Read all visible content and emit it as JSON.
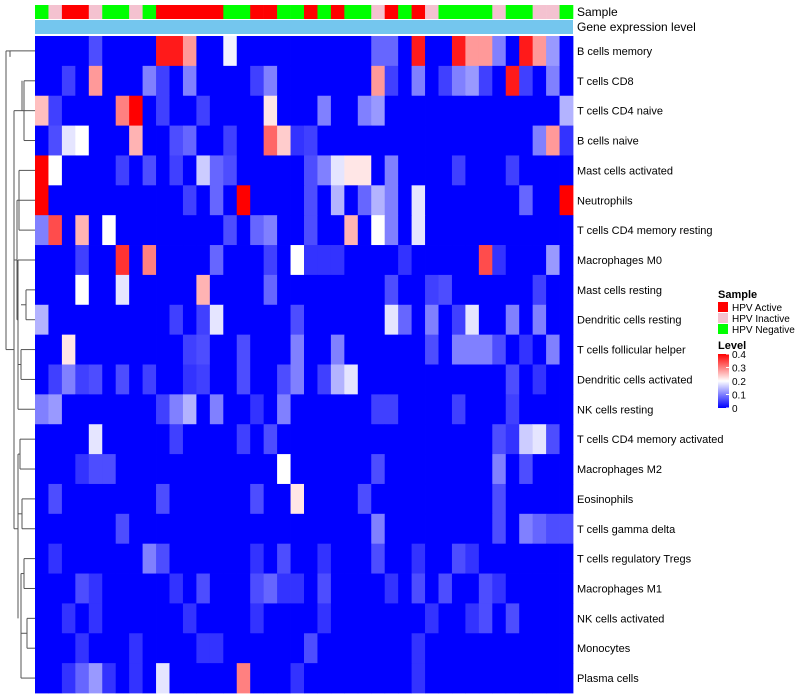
{
  "chart_data": {
    "type": "heatmap",
    "annotation_labels": [
      "Sample",
      "Gene expression level"
    ],
    "rows": [
      "B cells memory",
      "T cells CD8",
      "T cells CD4 naive",
      "B cells naive",
      "Mast cells activated",
      "Neutrophils",
      "T cells CD4 memory resting",
      "Macrophages M0",
      "Mast cells resting",
      "Dendritic cells resting",
      "T cells follicular helper",
      "Dendritic cells activated",
      "NK cells resting",
      "T cells CD4 memory activated",
      "Macrophages M2",
      "Eosinophils",
      "T cells gamma delta",
      "T cells regulatory  Tregs",
      "Macrophages M1",
      "NK cells activated",
      "Monocytes",
      "Plasma cells"
    ],
    "sample_groups": [
      "Negative",
      "Inactive",
      "Active",
      "Active",
      "Inactive",
      "Negative",
      "Negative",
      "Inactive",
      "Negative",
      "Active",
      "Active",
      "Active",
      "Active",
      "Active",
      "Negative",
      "Negative",
      "Active",
      "Active",
      "Negative",
      "Negative",
      "Active",
      "Negative",
      "Active",
      "Negative",
      "Negative",
      "Inactive",
      "Active",
      "Negative",
      "Active",
      "Inactive",
      "Negative",
      "Negative",
      "Negative",
      "Negative",
      "Inactive",
      "Negative",
      "Negative",
      "Inactive",
      "Inactive",
      "Negative"
    ],
    "values": [
      [
        0.0,
        0.0,
        0.0,
        0.0,
        0.06,
        0.0,
        0.0,
        0.0,
        0.0,
        0.38,
        0.38,
        0.28,
        0.0,
        0.0,
        0.19,
        0.0,
        0.0,
        0.0,
        0.0,
        0.0,
        0.0,
        0.0,
        0.0,
        0.0,
        0.0,
        0.08,
        0.08,
        0.0,
        0.38,
        0.0,
        0.0,
        0.38,
        0.28,
        0.28,
        0.1,
        0.0,
        0.38,
        0.28,
        0.12,
        0.0
      ],
      [
        0.0,
        0.0,
        0.05,
        0.0,
        0.28,
        0.0,
        0.0,
        0.0,
        0.1,
        0.05,
        0.0,
        0.1,
        0.0,
        0.0,
        0.0,
        0.0,
        0.05,
        0.1,
        0.0,
        0.0,
        0.0,
        0.0,
        0.0,
        0.0,
        0.0,
        0.28,
        0.05,
        0.0,
        0.1,
        0.0,
        0.05,
        0.1,
        0.12,
        0.05,
        0.0,
        0.38,
        0.05,
        0.0,
        0.1,
        0.0
      ],
      [
        0.25,
        0.05,
        0.0,
        0.0,
        0.0,
        0.0,
        0.3,
        0.4,
        0.0,
        0.05,
        0.0,
        0.0,
        0.05,
        0.0,
        0.0,
        0.0,
        0.0,
        0.22,
        0.0,
        0.0,
        0.0,
        0.1,
        0.0,
        0.0,
        0.1,
        0.12,
        0.0,
        0.0,
        0.0,
        0.0,
        0.0,
        0.0,
        0.0,
        0.0,
        0.0,
        0.0,
        0.0,
        0.0,
        0.0,
        0.14
      ],
      [
        0.0,
        0.06,
        0.18,
        0.2,
        0.0,
        0.0,
        0.0,
        0.26,
        0.0,
        0.0,
        0.06,
        0.08,
        0.0,
        0.0,
        0.05,
        0.0,
        0.0,
        0.32,
        0.24,
        0.04,
        0.05,
        0.0,
        0.0,
        0.0,
        0.0,
        0.0,
        0.0,
        0.0,
        0.0,
        0.0,
        0.0,
        0.0,
        0.0,
        0.0,
        0.0,
        0.0,
        0.0,
        0.1,
        0.28,
        0.04
      ],
      [
        0.4,
        0.2,
        0.0,
        0.0,
        0.0,
        0.0,
        0.05,
        0.0,
        0.06,
        0.0,
        0.05,
        0.0,
        0.16,
        0.08,
        0.06,
        0.0,
        0.0,
        0.0,
        0.0,
        0.0,
        0.06,
        0.1,
        0.18,
        0.22,
        0.22,
        0.0,
        0.1,
        0.0,
        0.0,
        0.0,
        0.0,
        0.05,
        0.0,
        0.0,
        0.0,
        0.05,
        0.0,
        0.0,
        0.0,
        0.0
      ],
      [
        0.4,
        0.0,
        0.0,
        0.0,
        0.0,
        0.0,
        0.0,
        0.0,
        0.0,
        0.0,
        0.0,
        0.05,
        0.0,
        0.08,
        0.0,
        0.4,
        0.0,
        0.0,
        0.0,
        0.0,
        0.06,
        0.0,
        0.14,
        0.0,
        0.08,
        0.14,
        0.1,
        0.0,
        0.18,
        0.0,
        0.0,
        0.0,
        0.0,
        0.0,
        0.0,
        0.0,
        0.08,
        0.0,
        0.0,
        0.4
      ],
      [
        0.1,
        0.34,
        0.0,
        0.26,
        0.0,
        0.2,
        0.0,
        0.0,
        0.0,
        0.0,
        0.0,
        0.0,
        0.0,
        0.0,
        0.06,
        0.0,
        0.08,
        0.1,
        0.0,
        0.0,
        0.06,
        0.0,
        0.0,
        0.26,
        0.0,
        0.2,
        0.1,
        0.0,
        0.18,
        0.0,
        0.0,
        0.0,
        0.0,
        0.0,
        0.0,
        0.0,
        0.0,
        0.0,
        0.0,
        0.0
      ],
      [
        0.0,
        0.0,
        0.0,
        0.05,
        0.0,
        0.0,
        0.36,
        0.0,
        0.3,
        0.0,
        0.0,
        0.0,
        0.0,
        0.08,
        0.0,
        0.0,
        0.0,
        0.05,
        0.0,
        0.2,
        0.04,
        0.04,
        0.04,
        0.0,
        0.0,
        0.0,
        0.0,
        0.04,
        0.0,
        0.0,
        0.0,
        0.0,
        0.0,
        0.34,
        0.04,
        0.0,
        0.0,
        0.0,
        0.12,
        0.0
      ],
      [
        0.0,
        0.0,
        0.0,
        0.2,
        0.0,
        0.0,
        0.18,
        0.0,
        0.0,
        0.0,
        0.0,
        0.0,
        0.26,
        0.0,
        0.0,
        0.0,
        0.0,
        0.08,
        0.0,
        0.0,
        0.0,
        0.0,
        0.0,
        0.0,
        0.0,
        0.0,
        0.06,
        0.0,
        0.0,
        0.05,
        0.06,
        0.0,
        0.0,
        0.0,
        0.0,
        0.0,
        0.0,
        0.05,
        0.0,
        0.0
      ],
      [
        0.14,
        0.0,
        0.0,
        0.0,
        0.0,
        0.0,
        0.0,
        0.0,
        0.0,
        0.0,
        0.05,
        0.0,
        0.05,
        0.18,
        0.0,
        0.0,
        0.0,
        0.0,
        0.0,
        0.06,
        0.0,
        0.0,
        0.0,
        0.0,
        0.0,
        0.0,
        0.18,
        0.08,
        0.0,
        0.1,
        0.0,
        0.05,
        0.18,
        0.0,
        0.0,
        0.1,
        0.0,
        0.1,
        0.0,
        0.0
      ],
      [
        0.0,
        0.0,
        0.22,
        0.0,
        0.0,
        0.0,
        0.0,
        0.0,
        0.0,
        0.0,
        0.0,
        0.05,
        0.06,
        0.0,
        0.0,
        0.06,
        0.0,
        0.0,
        0.0,
        0.1,
        0.0,
        0.0,
        0.1,
        0.0,
        0.0,
        0.0,
        0.0,
        0.0,
        0.0,
        0.06,
        0.0,
        0.1,
        0.1,
        0.1,
        0.06,
        0.0,
        0.04,
        0.0,
        0.1,
        0.0
      ],
      [
        0.0,
        0.05,
        0.1,
        0.05,
        0.06,
        0.0,
        0.06,
        0.0,
        0.05,
        0.0,
        0.0,
        0.04,
        0.05,
        0.0,
        0.0,
        0.06,
        0.0,
        0.0,
        0.06,
        0.1,
        0.0,
        0.05,
        0.14,
        0.18,
        0.0,
        0.0,
        0.0,
        0.0,
        0.0,
        0.0,
        0.0,
        0.0,
        0.0,
        0.0,
        0.0,
        0.06,
        0.0,
        0.04,
        0.0,
        0.0
      ],
      [
        0.1,
        0.12,
        0.0,
        0.0,
        0.0,
        0.0,
        0.0,
        0.0,
        0.0,
        0.05,
        0.1,
        0.14,
        0.0,
        0.1,
        0.0,
        0.0,
        0.04,
        0.0,
        0.1,
        0.0,
        0.0,
        0.0,
        0.0,
        0.0,
        0.0,
        0.05,
        0.05,
        0.0,
        0.0,
        0.0,
        0.0,
        0.05,
        0.0,
        0.0,
        0.0,
        0.05,
        0.0,
        0.0,
        0.0,
        0.0
      ],
      [
        0.0,
        0.0,
        0.0,
        0.0,
        0.18,
        0.0,
        0.0,
        0.0,
        0.0,
        0.0,
        0.05,
        0.0,
        0.0,
        0.0,
        0.0,
        0.05,
        0.0,
        0.06,
        0.0,
        0.0,
        0.0,
        0.0,
        0.0,
        0.0,
        0.0,
        0.0,
        0.0,
        0.0,
        0.0,
        0.0,
        0.0,
        0.0,
        0.0,
        0.0,
        0.06,
        0.04,
        0.16,
        0.18,
        0.06,
        0.0
      ],
      [
        0.0,
        0.0,
        0.0,
        0.04,
        0.06,
        0.06,
        0.0,
        0.0,
        0.0,
        0.0,
        0.0,
        0.0,
        0.0,
        0.0,
        0.0,
        0.0,
        0.0,
        0.0,
        0.2,
        0.0,
        0.0,
        0.0,
        0.0,
        0.0,
        0.0,
        0.06,
        0.0,
        0.0,
        0.0,
        0.0,
        0.0,
        0.0,
        0.0,
        0.0,
        0.1,
        0.0,
        0.06,
        0.0,
        0.0,
        0.0
      ],
      [
        0.0,
        0.06,
        0.0,
        0.0,
        0.0,
        0.0,
        0.0,
        0.0,
        0.0,
        0.06,
        0.0,
        0.0,
        0.0,
        0.0,
        0.0,
        0.0,
        0.06,
        0.0,
        0.0,
        0.22,
        0.0,
        0.0,
        0.0,
        0.0,
        0.06,
        0.0,
        0.0,
        0.0,
        0.0,
        0.0,
        0.0,
        0.0,
        0.0,
        0.0,
        0.06,
        0.0,
        0.0,
        0.0,
        0.0,
        0.0
      ],
      [
        0.0,
        0.0,
        0.0,
        0.0,
        0.0,
        0.0,
        0.06,
        0.0,
        0.0,
        0.0,
        0.0,
        0.0,
        0.0,
        0.0,
        0.0,
        0.0,
        0.0,
        0.0,
        0.0,
        0.0,
        0.0,
        0.0,
        0.0,
        0.0,
        0.0,
        0.1,
        0.0,
        0.0,
        0.0,
        0.0,
        0.0,
        0.0,
        0.0,
        0.0,
        0.06,
        0.0,
        0.1,
        0.08,
        0.06,
        0.06
      ],
      [
        0.0,
        0.04,
        0.0,
        0.0,
        0.0,
        0.0,
        0.0,
        0.0,
        0.1,
        0.06,
        0.0,
        0.0,
        0.0,
        0.0,
        0.0,
        0.0,
        0.04,
        0.0,
        0.06,
        0.0,
        0.0,
        0.04,
        0.0,
        0.0,
        0.0,
        0.06,
        0.0,
        0.0,
        0.04,
        0.0,
        0.0,
        0.06,
        0.04,
        0.0,
        0.0,
        0.0,
        0.0,
        0.0,
        0.0,
        0.0
      ],
      [
        0.0,
        0.0,
        0.0,
        0.06,
        0.04,
        0.0,
        0.0,
        0.0,
        0.0,
        0.0,
        0.04,
        0.0,
        0.06,
        0.0,
        0.0,
        0.0,
        0.06,
        0.08,
        0.04,
        0.04,
        0.0,
        0.06,
        0.0,
        0.0,
        0.0,
        0.0,
        0.04,
        0.0,
        0.06,
        0.0,
        0.06,
        0.0,
        0.0,
        0.06,
        0.04,
        0.0,
        0.0,
        0.0,
        0.0,
        0.0
      ],
      [
        0.0,
        0.0,
        0.04,
        0.0,
        0.04,
        0.0,
        0.0,
        0.0,
        0.0,
        0.0,
        0.0,
        0.04,
        0.0,
        0.0,
        0.0,
        0.0,
        0.04,
        0.0,
        0.0,
        0.0,
        0.0,
        0.04,
        0.0,
        0.0,
        0.0,
        0.0,
        0.0,
        0.0,
        0.0,
        0.04,
        0.0,
        0.0,
        0.04,
        0.06,
        0.0,
        0.06,
        0.0,
        0.0,
        0.0,
        0.0
      ],
      [
        0.0,
        0.0,
        0.0,
        0.04,
        0.0,
        0.0,
        0.0,
        0.04,
        0.0,
        0.0,
        0.0,
        0.0,
        0.04,
        0.04,
        0.0,
        0.0,
        0.0,
        0.0,
        0.0,
        0.0,
        0.06,
        0.0,
        0.0,
        0.0,
        0.0,
        0.0,
        0.0,
        0.0,
        0.04,
        0.0,
        0.0,
        0.0,
        0.0,
        0.0,
        0.0,
        0.0,
        0.0,
        0.0,
        0.0,
        0.0
      ],
      [
        0.0,
        0.0,
        0.04,
        0.08,
        0.12,
        0.04,
        0.0,
        0.04,
        0.0,
        0.18,
        0.0,
        0.0,
        0.0,
        0.0,
        0.0,
        0.3,
        0.0,
        0.0,
        0.0,
        0.04,
        0.0,
        0.0,
        0.0,
        0.0,
        0.0,
        0.0,
        0.0,
        0.0,
        0.04,
        0.0,
        0.0,
        0.0,
        0.0,
        0.0,
        0.0,
        0.0,
        0.0,
        0.0,
        0.0,
        0.0
      ]
    ],
    "legend_sample": {
      "title": "Sample",
      "entries": [
        {
          "label": "HPV Active",
          "key": "Active",
          "color": "#ff0000"
        },
        {
          "label": "HPV Inactive",
          "key": "Inactive",
          "color": "#f4c2d0"
        },
        {
          "label": "HPV Negative",
          "key": "Negative",
          "color": "#00ff00"
        }
      ]
    },
    "legend_level": {
      "title": "Level",
      "ticks": [
        "0.4",
        "0.3",
        "0.2",
        "0.1",
        "0"
      ],
      "tick_values": [
        0.4,
        0.3,
        0.2,
        0.1,
        0
      ],
      "colors": {
        "low": "#0000ff",
        "mid": "#ffffff",
        "high": "#ff0000"
      },
      "range": [
        0,
        0.4
      ]
    },
    "expression_bar_color": "#74c6ee"
  }
}
